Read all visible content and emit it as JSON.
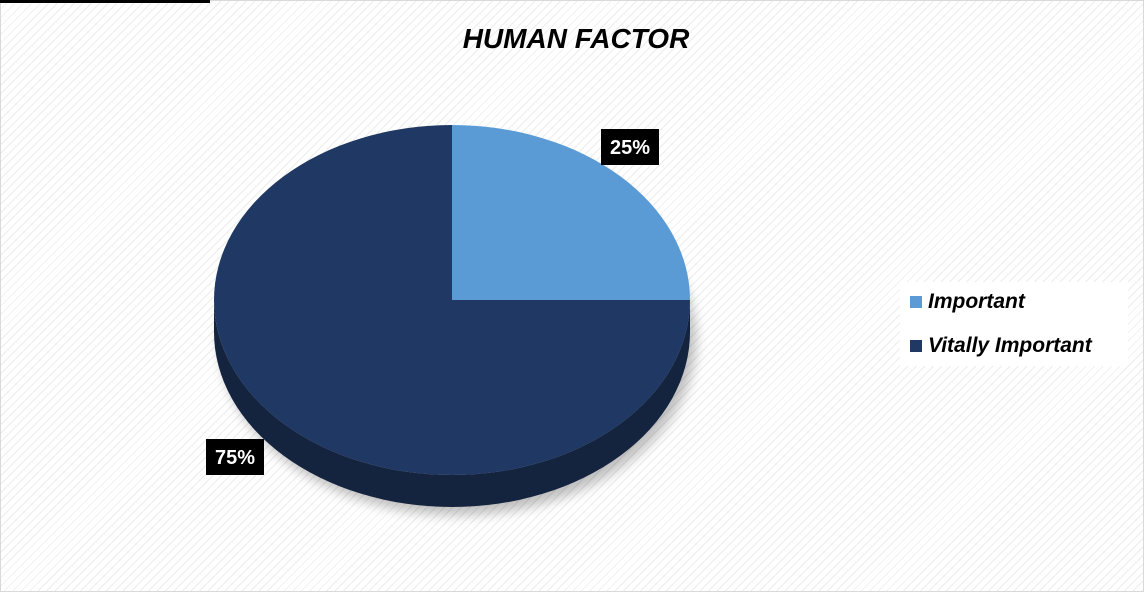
{
  "chart_data": {
    "type": "pie",
    "title": "HUMAN FACTOR",
    "categories": [
      "Important",
      "Vitally Important"
    ],
    "values": [
      25,
      75
    ],
    "data_labels": [
      "25%",
      "75%"
    ],
    "colors": [
      "#5b9bd5",
      "#203864"
    ],
    "legend_position": "right",
    "style": "3d-pie"
  }
}
